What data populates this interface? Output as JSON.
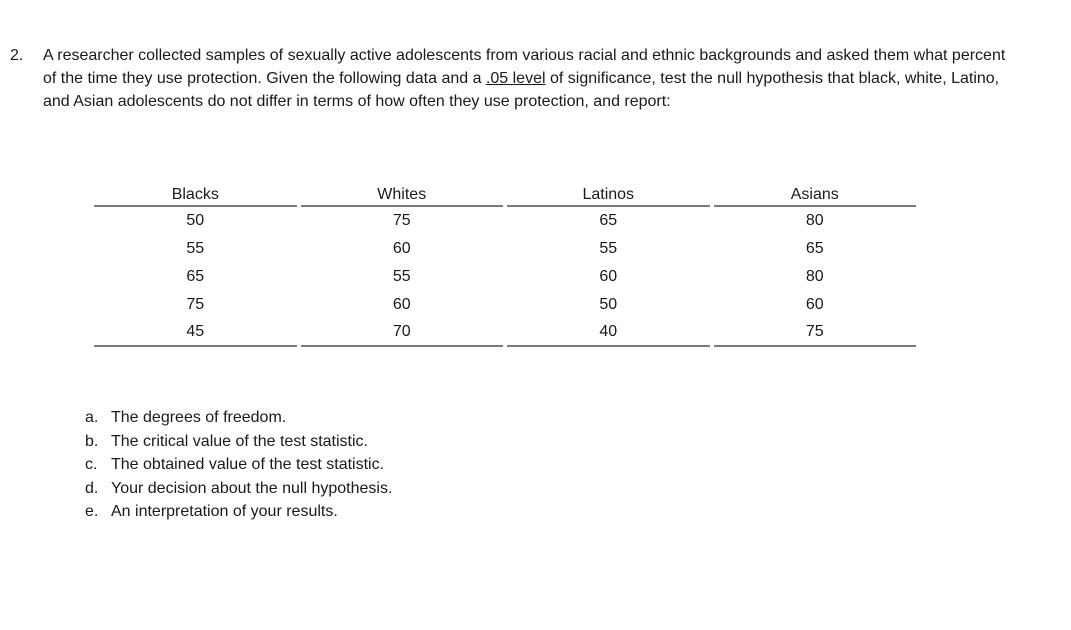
{
  "problem": {
    "number": "2.",
    "text_before_underline": "A researcher collected samples of sexually active adolescents from various racial and ethnic backgrounds and asked them what percent of the time they use protection. Given the following data and a ",
    "underlined_text": ".05 level",
    "text_after_underline": " of significance, test the null hypothesis that black, white, Latino, and Asian adolescents do not differ in terms of how often they use protection, and report:"
  },
  "table": {
    "columns": [
      "Blacks",
      "Whites",
      "Latinos",
      "Asians"
    ],
    "rows": [
      [
        "50",
        "75",
        "65",
        "80"
      ],
      [
        "55",
        "60",
        "55",
        "65"
      ],
      [
        "65",
        "55",
        "60",
        "80"
      ],
      [
        "75",
        "60",
        "50",
        "60"
      ],
      [
        "45",
        "70",
        "40",
        "75"
      ]
    ]
  },
  "report_items": [
    {
      "letter": "a.",
      "text": "The degrees of freedom."
    },
    {
      "letter": "b.",
      "text": "The critical value of the test statistic."
    },
    {
      "letter": "c.",
      "text": "The obtained value of the test statistic."
    },
    {
      "letter": "d.",
      "text": "Your decision about the null hypothesis."
    },
    {
      "letter": "e.",
      "text": "An interpretation of your results."
    }
  ],
  "colors": {
    "background": "#ffffff",
    "text": "#1a1a1a",
    "table_rule": "#7d7d7d"
  }
}
